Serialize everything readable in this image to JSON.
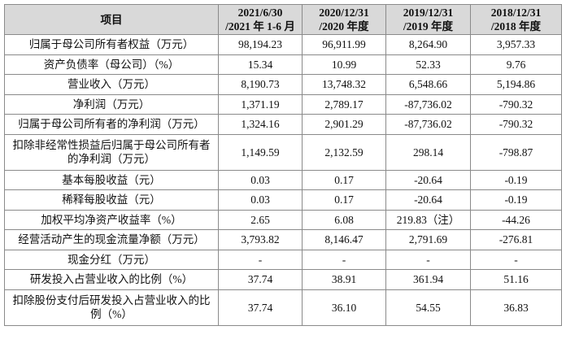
{
  "table": {
    "header": [
      [
        "项目"
      ],
      [
        "2021/6/30",
        "/2021 年 1-6 月"
      ],
      [
        "2020/12/31",
        "/2020 年度"
      ],
      [
        "2019/12/31",
        "/2019 年度"
      ],
      [
        "2018/12/31",
        "/2018 年度"
      ]
    ],
    "rows": [
      [
        "归属于母公司所有者权益（万元）",
        "98,194.23",
        "96,911.99",
        "8,264.90",
        "3,957.33"
      ],
      [
        "资产负债率（母公司）（%）",
        "15.34",
        "10.99",
        "52.33",
        "9.76"
      ],
      [
        "营业收入（万元）",
        "8,190.73",
        "13,748.32",
        "6,548.66",
        "5,194.86"
      ],
      [
        "净利润（万元）",
        "1,371.19",
        "2,789.17",
        "-87,736.02",
        "-790.32"
      ],
      [
        "归属于母公司所有者的净利润（万元）",
        "1,324.16",
        "2,901.29",
        "-87,736.02",
        "-790.32"
      ],
      [
        "扣除非经常性损益后归属于母公司所有者的净利润（万元）",
        "1,149.59",
        "2,132.59",
        "298.14",
        "-798.87"
      ],
      [
        "基本每股收益（元）",
        "0.03",
        "0.17",
        "-20.64",
        "-0.19"
      ],
      [
        "稀释每股收益（元）",
        "0.03",
        "0.17",
        "-20.64",
        "-0.19"
      ],
      [
        "加权平均净资产收益率（%）",
        "2.65",
        "6.08",
        "219.83（注）",
        "-44.26"
      ],
      [
        "经营活动产生的现金流量净额（万元）",
        "3,793.82",
        "8,146.47",
        "2,791.69",
        "-276.81"
      ],
      [
        "现金分红（万元）",
        "-",
        "-",
        "-",
        "-"
      ],
      [
        "研发投入占营业收入的比例（%）",
        "37.74",
        "38.91",
        "361.94",
        "51.16"
      ],
      [
        "扣除股份支付后研发投入占营业收入的比例（%）",
        "37.74",
        "36.10",
        "54.55",
        "36.83"
      ]
    ]
  }
}
